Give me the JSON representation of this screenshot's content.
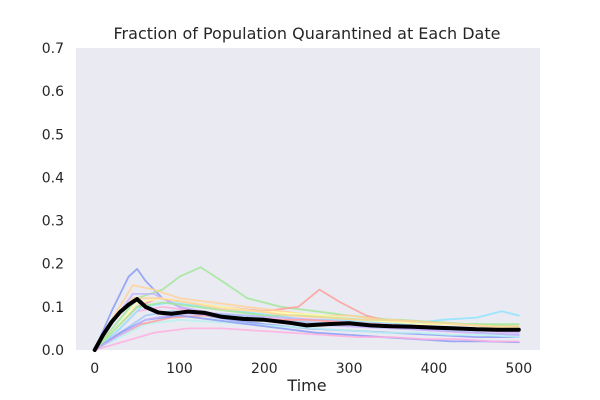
{
  "chart_data": {
    "type": "line",
    "title": "Fraction of Population Quarantined at Each Date",
    "xlabel": "Time",
    "ylabel": "",
    "xlim": [
      -22,
      525
    ],
    "ylim": [
      0,
      0.7
    ],
    "xticks": [
      0,
      100,
      200,
      300,
      400,
      500
    ],
    "yticks": [
      0.0,
      0.1,
      0.2,
      0.3,
      0.4,
      0.5,
      0.6,
      0.7
    ],
    "xtick_labels": [
      "0",
      "100",
      "200",
      "300",
      "400",
      "500"
    ],
    "ytick_labels": [
      "0.0",
      "0.1",
      "0.2",
      "0.3",
      "0.4",
      "0.5",
      "0.6",
      "0.7"
    ],
    "grid": false,
    "background_color": "#eaeaf2",
    "mean_line": {
      "color": "#000000",
      "x": [
        0,
        10,
        20,
        30,
        40,
        50,
        60,
        75,
        90,
        110,
        130,
        150,
        175,
        200,
        230,
        250,
        275,
        300,
        325,
        350,
        375,
        400,
        425,
        450,
        475,
        500
      ],
      "y": [
        0.0,
        0.035,
        0.065,
        0.088,
        0.105,
        0.118,
        0.1,
        0.087,
        0.084,
        0.089,
        0.086,
        0.077,
        0.072,
        0.07,
        0.063,
        0.057,
        0.06,
        0.062,
        0.057,
        0.055,
        0.054,
        0.052,
        0.05,
        0.048,
        0.047,
        0.047
      ]
    },
    "series": [
      {
        "color": "#8b9cf4",
        "x": [
          0,
          20,
          40,
          50,
          60,
          80,
          100,
          130,
          160,
          200,
          250,
          300,
          350,
          400,
          450,
          500
        ],
        "y": [
          0,
          0.09,
          0.17,
          0.188,
          0.16,
          0.12,
          0.1,
          0.08,
          0.07,
          0.06,
          0.05,
          0.045,
          0.04,
          0.035,
          0.03,
          0.03
        ]
      },
      {
        "color": "#a2e89a",
        "x": [
          0,
          25,
          50,
          80,
          100,
          125,
          150,
          180,
          220,
          260,
          300,
          350,
          400,
          450,
          500
        ],
        "y": [
          0,
          0.06,
          0.12,
          0.14,
          0.17,
          0.192,
          0.16,
          0.12,
          0.1,
          0.09,
          0.08,
          0.07,
          0.06,
          0.06,
          0.055
        ]
      },
      {
        "color": "#ff9f9b",
        "x": [
          0,
          25,
          50,
          75,
          110,
          150,
          200,
          240,
          265,
          290,
          320,
          360,
          400,
          450,
          500
        ],
        "y": [
          0,
          0.05,
          0.1,
          0.12,
          0.11,
          0.1,
          0.09,
          0.1,
          0.14,
          0.11,
          0.08,
          0.06,
          0.05,
          0.05,
          0.045
        ]
      },
      {
        "color": "#ffd29a",
        "x": [
          0,
          20,
          45,
          70,
          100,
          140,
          180,
          220,
          260,
          300,
          340,
          380,
          420,
          460,
          500
        ],
        "y": [
          0,
          0.07,
          0.15,
          0.14,
          0.12,
          0.11,
          0.1,
          0.09,
          0.08,
          0.08,
          0.07,
          0.065,
          0.06,
          0.055,
          0.05
        ]
      },
      {
        "color": "#ffb0e0",
        "x": [
          0,
          25,
          50,
          80,
          120,
          160,
          200,
          240,
          280,
          320,
          360,
          400,
          440,
          480,
          500
        ],
        "y": [
          0,
          0.04,
          0.09,
          0.1,
          0.09,
          0.08,
          0.075,
          0.065,
          0.06,
          0.055,
          0.05,
          0.045,
          0.04,
          0.038,
          0.035
        ]
      },
      {
        "color": "#8de5ff",
        "x": [
          0,
          30,
          55,
          90,
          130,
          170,
          210,
          250,
          290,
          330,
          370,
          410,
          450,
          480,
          500
        ],
        "y": [
          0,
          0.05,
          0.1,
          0.11,
          0.1,
          0.09,
          0.08,
          0.07,
          0.07,
          0.065,
          0.06,
          0.07,
          0.075,
          0.09,
          0.08
        ]
      },
      {
        "color": "#c6b4ff",
        "x": [
          0,
          20,
          45,
          70,
          100,
          140,
          180,
          220,
          260,
          300,
          340,
          380,
          420,
          460,
          500
        ],
        "y": [
          0,
          0.06,
          0.13,
          0.13,
          0.1,
          0.085,
          0.08,
          0.075,
          0.07,
          0.065,
          0.06,
          0.055,
          0.05,
          0.045,
          0.04
        ]
      },
      {
        "color": "#fffea3",
        "x": [
          0,
          25,
          50,
          80,
          110,
          150,
          190,
          230,
          270,
          310,
          350,
          390,
          430,
          470,
          500
        ],
        "y": [
          0,
          0.05,
          0.11,
          0.12,
          0.11,
          0.1,
          0.09,
          0.085,
          0.08,
          0.07,
          0.065,
          0.06,
          0.06,
          0.055,
          0.05
        ]
      },
      {
        "color": "#a1c9f4",
        "x": [
          0,
          30,
          60,
          90,
          130,
          170,
          210,
          250,
          290,
          330,
          370,
          410,
          450,
          490,
          500
        ],
        "y": [
          0,
          0.04,
          0.08,
          0.09,
          0.085,
          0.08,
          0.07,
          0.065,
          0.06,
          0.055,
          0.05,
          0.045,
          0.04,
          0.035,
          0.035
        ]
      },
      {
        "color": "#b9f2f0",
        "x": [
          0,
          30,
          60,
          100,
          140,
          180,
          220,
          260,
          300,
          340,
          380,
          420,
          460,
          500
        ],
        "y": [
          0,
          0.03,
          0.06,
          0.07,
          0.065,
          0.06,
          0.055,
          0.05,
          0.045,
          0.04,
          0.04,
          0.035,
          0.035,
          0.03
        ]
      },
      {
        "color": "#ff9f9b",
        "x": [
          0,
          25,
          55,
          90,
          130,
          170,
          210,
          250,
          290,
          330,
          370,
          410,
          450,
          490,
          500
        ],
        "y": [
          0,
          0.03,
          0.06,
          0.075,
          0.08,
          0.075,
          0.07,
          0.07,
          0.065,
          0.06,
          0.055,
          0.05,
          0.05,
          0.045,
          0.045
        ]
      },
      {
        "color": "#8b9cf4",
        "x": [
          0,
          30,
          60,
          100,
          140,
          180,
          220,
          260,
          300,
          340,
          380,
          420,
          460,
          500
        ],
        "y": [
          0,
          0.04,
          0.07,
          0.08,
          0.07,
          0.06,
          0.05,
          0.04,
          0.035,
          0.03,
          0.025,
          0.02,
          0.02,
          0.018
        ]
      },
      {
        "color": "#a2e89a",
        "x": [
          0,
          25,
          50,
          80,
          120,
          160,
          200,
          240,
          280,
          320,
          360,
          400,
          440,
          480,
          500
        ],
        "y": [
          0,
          0.05,
          0.1,
          0.11,
          0.1,
          0.09,
          0.08,
          0.08,
          0.075,
          0.07,
          0.07,
          0.065,
          0.06,
          0.06,
          0.06
        ]
      },
      {
        "color": "#ffb0e0",
        "x": [
          0,
          35,
          70,
          110,
          150,
          190,
          230,
          270,
          310,
          350,
          390,
          430,
          470,
          500
        ],
        "y": [
          0,
          0.02,
          0.04,
          0.05,
          0.05,
          0.045,
          0.04,
          0.035,
          0.03,
          0.03,
          0.025,
          0.025,
          0.02,
          0.02
        ]
      },
      {
        "color": "#ffd29a",
        "x": [
          0,
          20,
          45,
          75,
          110,
          150,
          190,
          230,
          270,
          310,
          350,
          390,
          430,
          470,
          500
        ],
        "y": [
          0,
          0.06,
          0.12,
          0.12,
          0.11,
          0.095,
          0.09,
          0.08,
          0.075,
          0.07,
          0.07,
          0.065,
          0.06,
          0.055,
          0.055
        ]
      },
      {
        "color": "#c6b4ff",
        "x": [
          0,
          30,
          60,
          100,
          150,
          200,
          250,
          300,
          350,
          400,
          450,
          500
        ],
        "y": [
          0,
          0.035,
          0.07,
          0.085,
          0.08,
          0.07,
          0.06,
          0.055,
          0.05,
          0.045,
          0.04,
          0.035
        ]
      }
    ]
  }
}
